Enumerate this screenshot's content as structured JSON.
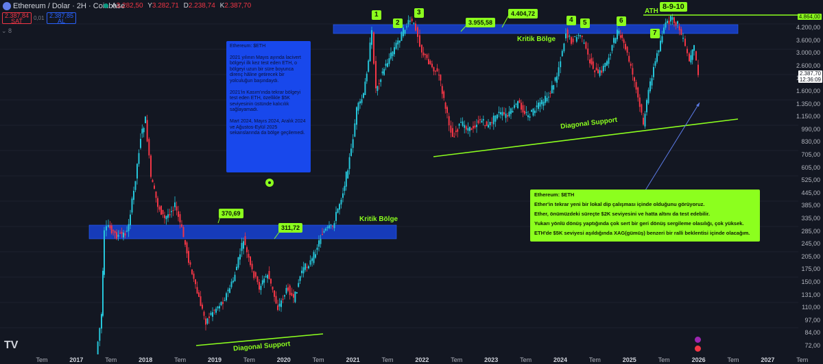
{
  "header": {
    "title": "Ethereum / Dolar · 2H · Coinbase",
    "ohlc": [
      {
        "k": "A",
        "v": "3.282,50"
      },
      {
        "k": "Y",
        "v": "3.282,71"
      },
      {
        "k": "D",
        "v": "2.238,74"
      },
      {
        "k": "K",
        "v": "2.387,70"
      }
    ],
    "sell_price": "2.387,84",
    "sell_label": "SAT",
    "spread": "0,01",
    "buy_price": "2.387,85",
    "buy_label": "AL",
    "layers": "8"
  },
  "price_axis": {
    "labels": [
      "4.200,00",
      "3.600,00",
      "3.000,00",
      "2.600,00",
      "1.900,00",
      "1.600,00",
      "1.350,00",
      "1.150,00",
      "990,00",
      "830,00",
      "705,00",
      "605,00",
      "525,00",
      "445,00",
      "385,00",
      "335,00",
      "285,00",
      "245,00",
      "205,00",
      "175,00",
      "150,00",
      "131,00",
      "110,00",
      "97,00",
      "84,00",
      "72,00"
    ],
    "ath_tag": "4.864,00",
    "current_price": "2.387,70",
    "countdown": "12:36:09"
  },
  "time_axis": {
    "labels": [
      "Tem",
      "2017",
      "Tem",
      "2018",
      "Tem",
      "2019",
      "Tem",
      "2020",
      "Tem",
      "2021",
      "Tem",
      "2022",
      "Tem",
      "2023",
      "Tem",
      "2024",
      "Tem",
      "2025",
      "Tem",
      "2026",
      "Tem",
      "2027",
      "Tem"
    ]
  },
  "annotations": {
    "markers": [
      "1",
      "2",
      "3",
      "4",
      "5",
      "6",
      "7",
      "8-9-10"
    ],
    "ath_label": "ATH",
    "zone_label_upper": "Kritik Bölge",
    "zone_label_lower": "Kritik Bölge",
    "price_upper_1": "3.955,58",
    "price_upper_2": "4.404,72",
    "price_lower_1": "370,69",
    "price_lower_2": "311,72",
    "diag_upper": "Diagonal Support",
    "diag_lower": "Diagonal Support"
  },
  "note_blue": {
    "title": "Ethereum: $ETH",
    "p1": "2021 yılının Mayıs ayında lacivert bölgeyi ilk kez test eden ETH, o bölgeyi uzun bir süre boyunca direnç hâline getirecek bir yolculuğun başındaydı.",
    "p2": "2021'in Kasım'ında tekrar bölgeyi test eden ETH, özellikle $5K seviyesinin üstünde kalıcılık sağlayamadı.",
    "p3": "Mart 2024, Mayıs 2024, Aralık 2024 ve Ağustos-Eylül 2025 sekanslarında da bölge geçilemedi."
  },
  "note_green": {
    "title": "Ethereum: $ETH",
    "p1": "Ether'in tekrar yeni bir lokal dip çalışması içinde olduğunu görüyoruz.",
    "p2": "Ether, önümüzdeki süreçte $2K seviyesini ve hatta altını da test edebilir.",
    "p3": "Yukarı yönlü dönüş yaptığında çok sert bir geri dönüş sergileme olasılığı, çok yüksek.",
    "p4": "ETH'de $5K seviyesi aşıldığında XAG(gümüş) benzeri bir ralli beklentisi içinde olacağım."
  },
  "logo": "TV",
  "colors": {
    "background": "#131722",
    "up": "#26c6da",
    "down": "#f23645",
    "zone": "#1848ec",
    "accent_green": "#8cff1e"
  }
}
